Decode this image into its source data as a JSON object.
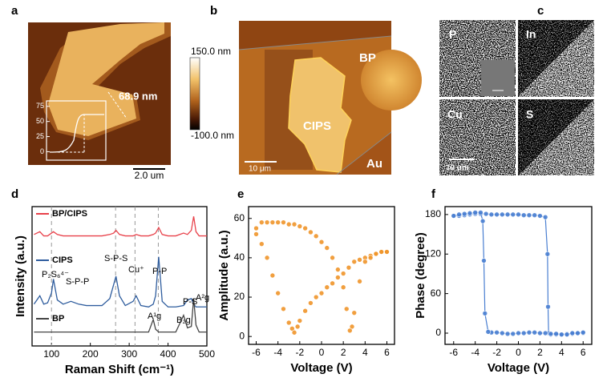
{
  "panels": {
    "a": {
      "label": "a",
      "annotation": "68.9 nm",
      "inset_ylabel": "Height (mV)",
      "inset_yticks": [
        0,
        25,
        50,
        75
      ],
      "inset_ylim": [
        -14,
        84
      ],
      "scale_bar": "2.0 um",
      "colorbar_max": "150.0 nm",
      "colorbar_min": "-100.0 nm"
    },
    "b": {
      "label": "b",
      "labels": [
        "BP",
        "CIPS",
        "Au"
      ],
      "scale_bar": "10 μm"
    },
    "c": {
      "label": "c",
      "maps": [
        "P",
        "In",
        "Cu",
        "S"
      ],
      "scale_bar": "10 μm"
    }
  },
  "chart_data": [
    {
      "label": "d",
      "type": "line",
      "xlabel": "Raman Shift (cm⁻¹)",
      "ylabel": "Intensity (a.u.)",
      "x": [
        55,
        70,
        80,
        90,
        100,
        105,
        115,
        130,
        150,
        170,
        190,
        210,
        230,
        250,
        260,
        266,
        275,
        290,
        310,
        318,
        330,
        350,
        362,
        368,
        376,
        385,
        400,
        420,
        440,
        450,
        460,
        466,
        472,
        480,
        490,
        500
      ],
      "xlim": [
        50,
        500
      ],
      "xticks": [
        100,
        200,
        300,
        400,
        500
      ],
      "ylim": [
        0,
        10
      ],
      "reference_lines": [
        100,
        265,
        315,
        375
      ],
      "series": [
        {
          "name": "BP/CIPS",
          "color": "#e8414a",
          "values": [
            8.0,
            8.2,
            7.9,
            7.9,
            8.1,
            8.2,
            8.0,
            7.9,
            7.9,
            7.9,
            7.9,
            7.9,
            7.9,
            8.0,
            8.1,
            8.3,
            8.0,
            7.9,
            7.9,
            8.0,
            7.9,
            7.9,
            8.0,
            8.1,
            8.5,
            8.0,
            7.9,
            7.9,
            8.1,
            8.0,
            8.3,
            9.3,
            8.2,
            7.9,
            7.9,
            7.9
          ]
        },
        {
          "name": "CIPS",
          "color": "#2f5d9e",
          "values": [
            3.0,
            3.6,
            3.0,
            3.1,
            3.8,
            4.8,
            3.3,
            3.0,
            3.2,
            3.0,
            2.9,
            2.9,
            2.9,
            3.4,
            4.4,
            5.0,
            3.6,
            2.9,
            3.2,
            3.6,
            2.9,
            2.8,
            3.0,
            3.6,
            6.4,
            3.2,
            2.8,
            2.8,
            2.9,
            3.3,
            3.4,
            3.0,
            2.8,
            2.8,
            2.8,
            2.8
          ]
        },
        {
          "name": "BP",
          "color": "#444444",
          "values": [
            1.0,
            1.0,
            1.0,
            1.0,
            1.0,
            1.0,
            1.0,
            1.0,
            1.0,
            1.0,
            1.0,
            1.0,
            1.0,
            1.0,
            1.0,
            1.0,
            1.0,
            1.0,
            1.0,
            1.0,
            1.0,
            1.0,
            1.9,
            1.2,
            1.0,
            1.0,
            1.0,
            1.0,
            2.2,
            1.3,
            1.4,
            3.4,
            1.5,
            1.0,
            1.0,
            1.0
          ]
        }
      ],
      "annotations": [
        "P₂S₆⁴⁻",
        "S-P-P",
        "S-P-S",
        "Cu⁺",
        "P-P",
        "P-S",
        "A¹g",
        "B₂g",
        "A²g"
      ]
    },
    {
      "label": "e",
      "type": "scatter",
      "xlabel": "Voltage (V)",
      "ylabel": "Amplitude (a.u.)",
      "xlim": [
        -6.7,
        6.7
      ],
      "xticks": [
        -6,
        -4,
        -2,
        0,
        2,
        4,
        6
      ],
      "ylim": [
        -4,
        66
      ],
      "yticks": [
        0,
        20,
        40,
        60
      ],
      "connect": false,
      "series": [
        {
          "color": "#f0952a",
          "x": [
            -6,
            -5.5,
            -5,
            -4.5,
            -4,
            -3.5,
            -3,
            -2.7,
            -2.5,
            -2.2,
            -2,
            -1.5,
            -1,
            -0.5,
            0,
            0.5,
            1,
            1.5,
            2,
            2.5,
            3,
            3.5,
            4,
            4.5,
            5,
            5.5,
            6
          ],
          "values": [
            52,
            47,
            40,
            31,
            22,
            14,
            7,
            4,
            2,
            5,
            8,
            13,
            17,
            20,
            22,
            25,
            27,
            30,
            32,
            35,
            38,
            39,
            40,
            41,
            42,
            43,
            43
          ]
        },
        {
          "color": "#f0952a",
          "x": [
            6,
            5.5,
            5,
            4.5,
            4,
            3.5,
            3,
            2.8,
            2.6,
            2.3,
            2,
            1.5,
            1,
            0.5,
            0,
            -0.5,
            -1,
            -1.5,
            -2,
            -2.5,
            -3,
            -3.5,
            -4,
            -4.5,
            -5,
            -5.5,
            -6
          ],
          "values": [
            43,
            43,
            42,
            40,
            38,
            28,
            12,
            5,
            3,
            14,
            25,
            34,
            40,
            45,
            48,
            51,
            53,
            55,
            56,
            57,
            57,
            58,
            58,
            58,
            58,
            58,
            55
          ]
        }
      ]
    },
    {
      "label": "f",
      "type": "scatter",
      "xlabel": "Voltage (V)",
      "ylabel": "Phase (degree)",
      "xlim": [
        -6.8,
        6.8
      ],
      "xticks": [
        -6,
        -4,
        -2,
        0,
        2,
        4,
        6
      ],
      "ylim": [
        -17,
        192
      ],
      "yticks": [
        0,
        60,
        120,
        180
      ],
      "connect": true,
      "series": [
        {
          "color": "#4a7fd1",
          "x": [
            -6,
            -5.5,
            -5,
            -4.5,
            -4,
            -3.5,
            -3,
            -2.5,
            -2,
            -1.5,
            -1,
            -0.5,
            0,
            0.5,
            1,
            1.5,
            2,
            2.5,
            2.7,
            2.75,
            2.8,
            3,
            3.5,
            4,
            4.5,
            5,
            5.5,
            6
          ],
          "values": [
            178,
            178,
            179,
            180,
            181,
            181,
            181,
            180,
            180,
            180,
            180,
            180,
            180,
            179,
            179,
            179,
            178,
            176,
            120,
            40,
            0,
            -2,
            -2,
            -2,
            -1,
            -1,
            0,
            0
          ]
        },
        {
          "color": "#4a7fd1",
          "x": [
            6,
            5.5,
            5,
            4.5,
            4,
            3.5,
            3,
            2.5,
            2,
            1.5,
            1,
            0.5,
            0,
            -0.5,
            -1,
            -1.5,
            -2,
            -2.5,
            -2.8,
            -3.1,
            -3.2,
            -3.3,
            -3.5,
            -4,
            -4.5,
            -5,
            -5.5,
            -6
          ],
          "values": [
            1,
            0,
            0,
            -2,
            -2,
            -1,
            -1,
            0,
            0,
            1,
            1,
            0,
            0,
            -1,
            -1,
            0,
            1,
            1,
            2,
            30,
            110,
            170,
            183,
            183,
            182,
            181,
            180,
            178
          ]
        }
      ]
    }
  ]
}
